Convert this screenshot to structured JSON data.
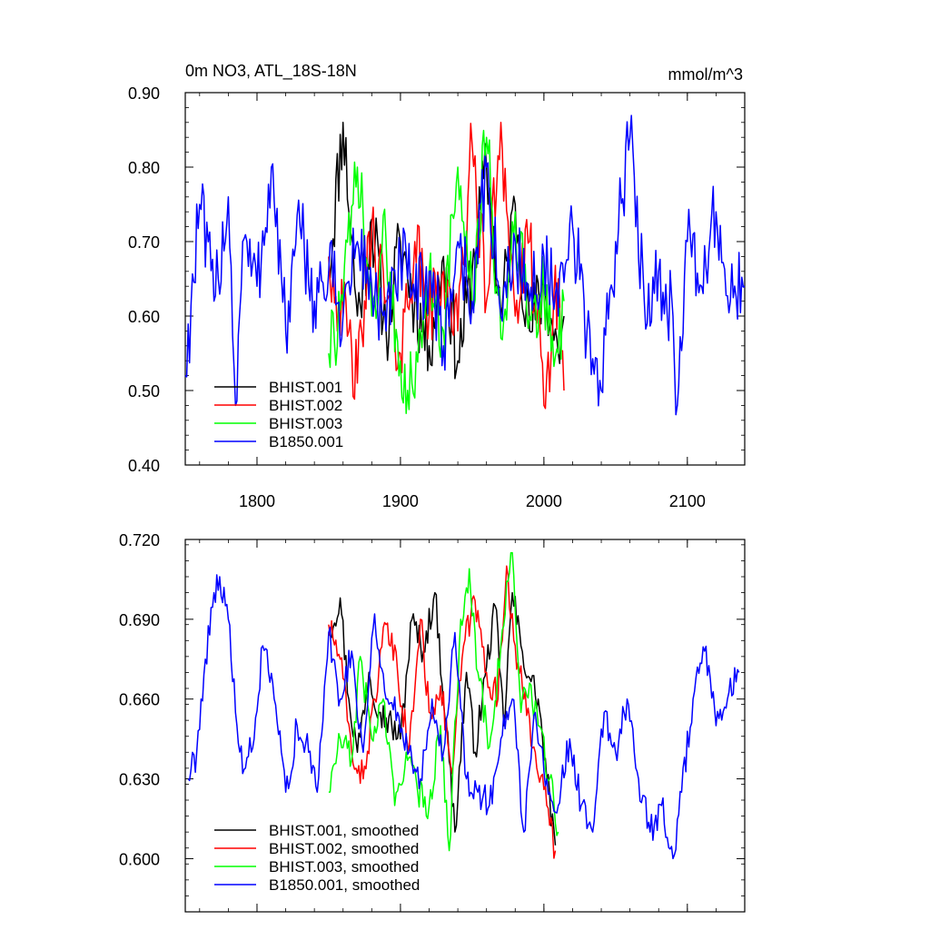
{
  "chart_data": [
    {
      "type": "line",
      "title": "0m NO3, ATL_18S-18N",
      "units": "mmol/m^3",
      "xlim": [
        1750,
        2140
      ],
      "ylim": [
        0.4,
        0.9
      ],
      "x_ticks": [
        1800,
        1900,
        2000,
        2100
      ],
      "x_tick_labels": [
        "1800",
        "1900",
        "2000",
        "2100"
      ],
      "y_ticks": [
        0.4,
        0.5,
        0.6,
        0.7,
        0.8,
        0.9
      ],
      "y_tick_labels": [
        "0.40",
        "0.50",
        "0.60",
        "0.70",
        "0.80",
        "0.90"
      ],
      "grid": false,
      "legend_position": "bottom-left",
      "series": [
        {
          "name": "BHIST.001",
          "color": "#000000",
          "x_start": 1850,
          "x_end": 2014,
          "x": [
            1850,
            1860,
            1870,
            1880,
            1890,
            1900,
            1910,
            1920,
            1930,
            1940,
            1950,
            1960,
            1970,
            1980,
            1990,
            2000,
            2010,
            2014
          ],
          "values": [
            0.66,
            0.86,
            0.6,
            0.73,
            0.58,
            0.7,
            0.62,
            0.56,
            0.68,
            0.54,
            0.66,
            0.8,
            0.6,
            0.75,
            0.58,
            0.64,
            0.55,
            0.6
          ]
        },
        {
          "name": "BHIST.002",
          "color": "#ff0000",
          "x_start": 1850,
          "x_end": 2014,
          "x": [
            1850,
            1860,
            1870,
            1880,
            1890,
            1900,
            1910,
            1920,
            1930,
            1940,
            1950,
            1960,
            1970,
            1980,
            1990,
            2000,
            2010,
            2014
          ],
          "values": [
            0.68,
            0.6,
            0.51,
            0.72,
            0.62,
            0.55,
            0.7,
            0.6,
            0.66,
            0.58,
            0.83,
            0.62,
            0.86,
            0.6,
            0.7,
            0.48,
            0.65,
            0.5
          ]
        },
        {
          "name": "BHIST.003",
          "color": "#00ff00",
          "x_start": 1850,
          "x_end": 2014,
          "x": [
            1850,
            1860,
            1870,
            1880,
            1890,
            1900,
            1910,
            1920,
            1930,
            1940,
            1950,
            1960,
            1970,
            1980,
            1990,
            2000,
            2010,
            2014
          ],
          "values": [
            0.55,
            0.62,
            0.8,
            0.6,
            0.7,
            0.54,
            0.49,
            0.66,
            0.58,
            0.8,
            0.62,
            0.84,
            0.57,
            0.74,
            0.6,
            0.63,
            0.55,
            0.62
          ]
        },
        {
          "name": "B1850.001",
          "color": "#0000ff",
          "x_start": 1750,
          "x_end": 2140,
          "x": [
            1750,
            1760,
            1770,
            1780,
            1785,
            1790,
            1800,
            1810,
            1820,
            1830,
            1840,
            1850,
            1860,
            1870,
            1880,
            1890,
            1900,
            1910,
            1920,
            1930,
            1940,
            1950,
            1960,
            1970,
            1980,
            1990,
            2000,
            2010,
            2020,
            2030,
            2040,
            2050,
            2060,
            2070,
            2080,
            2090,
            2093,
            2100,
            2110,
            2120,
            2130,
            2140
          ],
          "values": [
            0.52,
            0.75,
            0.62,
            0.76,
            0.48,
            0.7,
            0.64,
            0.8,
            0.58,
            0.72,
            0.62,
            0.66,
            0.6,
            0.7,
            0.64,
            0.58,
            0.68,
            0.62,
            0.66,
            0.56,
            0.7,
            0.62,
            0.8,
            0.6,
            0.7,
            0.62,
            0.68,
            0.6,
            0.72,
            0.58,
            0.5,
            0.7,
            0.84,
            0.62,
            0.66,
            0.6,
            0.48,
            0.7,
            0.64,
            0.74,
            0.62,
            0.64
          ]
        }
      ]
    },
    {
      "type": "line",
      "xlim": [
        1750,
        2140
      ],
      "ylim": [
        0.58,
        0.72
      ],
      "y_ticks": [
        0.6,
        0.63,
        0.66,
        0.69,
        0.72
      ],
      "y_tick_labels": [
        "0.600",
        "0.630",
        "0.660",
        "0.690",
        "0.720"
      ],
      "grid": false,
      "legend_position": "bottom-left",
      "series": [
        {
          "name": "BHIST.001, smoothed",
          "color": "#000000",
          "x": [
            1850,
            1858,
            1864,
            1870,
            1878,
            1886,
            1894,
            1900,
            1908,
            1916,
            1924,
            1932,
            1938,
            1946,
            1952,
            1960,
            1966,
            1972,
            1978,
            1984,
            1990,
            1996,
            2002,
            2008
          ],
          "values": [
            0.685,
            0.698,
            0.66,
            0.64,
            0.67,
            0.655,
            0.65,
            0.645,
            0.69,
            0.678,
            0.7,
            0.65,
            0.61,
            0.67,
            0.64,
            0.672,
            0.695,
            0.65,
            0.7,
            0.68,
            0.668,
            0.66,
            0.63,
            0.605
          ]
        },
        {
          "name": "BHIST.002, smoothed",
          "color": "#ff0000",
          "x": [
            1850,
            1858,
            1866,
            1874,
            1882,
            1890,
            1898,
            1906,
            1914,
            1920,
            1928,
            1936,
            1944,
            1952,
            1960,
            1968,
            1974,
            1980,
            1986,
            1994,
            2002,
            2008
          ],
          "values": [
            0.688,
            0.675,
            0.64,
            0.63,
            0.66,
            0.688,
            0.67,
            0.64,
            0.69,
            0.655,
            0.665,
            0.632,
            0.68,
            0.697,
            0.67,
            0.66,
            0.71,
            0.68,
            0.66,
            0.64,
            0.62,
            0.603
          ]
        },
        {
          "name": "BHIST.003, smoothed",
          "color": "#00ff00",
          "x": [
            1850,
            1858,
            1866,
            1872,
            1880,
            1888,
            1896,
            1904,
            1912,
            1920,
            1928,
            1934,
            1942,
            1948,
            1954,
            1962,
            1970,
            1978,
            1984,
            1990,
            1996,
            2004,
            2010
          ],
          "values": [
            0.625,
            0.645,
            0.637,
            0.676,
            0.645,
            0.66,
            0.62,
            0.64,
            0.625,
            0.62,
            0.65,
            0.603,
            0.69,
            0.709,
            0.67,
            0.642,
            0.68,
            0.718,
            0.655,
            0.666,
            0.65,
            0.63,
            0.61
          ]
        },
        {
          "name": "B1850.001, smoothed",
          "color": "#0000ff",
          "x": [
            1752,
            1758,
            1764,
            1770,
            1774,
            1780,
            1786,
            1790,
            1798,
            1804,
            1812,
            1820,
            1828,
            1836,
            1842,
            1850,
            1858,
            1866,
            1874,
            1882,
            1890,
            1898,
            1906,
            1914,
            1922,
            1930,
            1938,
            1946,
            1954,
            1962,
            1970,
            1978,
            1986,
            1994,
            2002,
            2010,
            2018,
            2026,
            2034,
            2042,
            2050,
            2058,
            2066,
            2074,
            2082,
            2090,
            2096,
            2104,
            2112,
            2120,
            2128,
            2136
          ],
          "values": [
            0.63,
            0.64,
            0.675,
            0.7,
            0.706,
            0.69,
            0.65,
            0.632,
            0.645,
            0.68,
            0.66,
            0.625,
            0.65,
            0.64,
            0.625,
            0.685,
            0.66,
            0.678,
            0.64,
            0.692,
            0.66,
            0.655,
            0.64,
            0.63,
            0.66,
            0.64,
            0.685,
            0.63,
            0.625,
            0.62,
            0.645,
            0.66,
            0.61,
            0.655,
            0.63,
            0.62,
            0.645,
            0.62,
            0.61,
            0.655,
            0.64,
            0.66,
            0.63,
            0.61,
            0.62,
            0.6,
            0.625,
            0.66,
            0.678,
            0.65,
            0.66,
            0.67
          ]
        }
      ]
    }
  ]
}
